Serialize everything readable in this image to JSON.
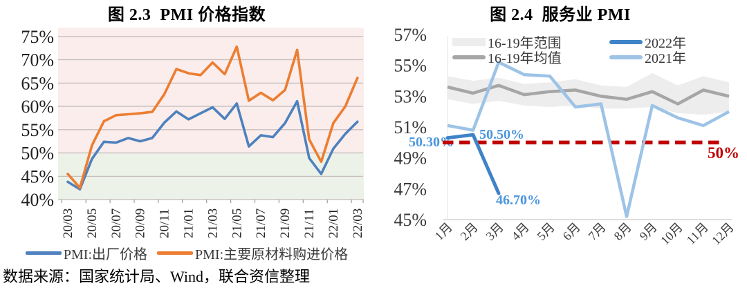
{
  "source_note": "数据来源：国家统计局、Wind，联合资信整理",
  "left_chart": {
    "title": "图 2.3  PMI 价格指数",
    "legend": [
      {
        "label": "PMI:出厂价格",
        "color": "#4E81BD"
      },
      {
        "label": "PMI:主要原材料购进价格",
        "color": "#ED7D31"
      }
    ]
  },
  "right_chart": {
    "title": "图 2.4  服务业 PMI",
    "legend": [
      {
        "label": "16-19年范围",
        "color": "#EDEDED"
      },
      {
        "label": "16-19年均值",
        "color": "#A6A6A6"
      },
      {
        "label": "2022年",
        "color": "#3F83C9"
      },
      {
        "label": "2021年",
        "color": "#9DC3E6"
      }
    ]
  },
  "chart_data": [
    {
      "type": "line",
      "title": "图 2.3 PMI 价格指数",
      "x": [
        "20/03",
        "20/04",
        "20/05",
        "20/06",
        "20/07",
        "20/08",
        "20/09",
        "20/10",
        "20/11",
        "20/12",
        "21/01",
        "21/02",
        "21/03",
        "21/04",
        "21/05",
        "21/06",
        "21/07",
        "21/08",
        "21/09",
        "21/10",
        "21/11",
        "21/12",
        "22/01",
        "22/02",
        "22/03"
      ],
      "x_tick_labels": [
        "20/03",
        "20/05",
        "20/07",
        "20/09",
        "20/11",
        "21/01",
        "21/03",
        "21/05",
        "21/07",
        "21/09",
        "21/11",
        "22/01",
        "22/03"
      ],
      "ylim": [
        40,
        75
      ],
      "yticks": [
        75,
        70,
        65,
        60,
        55,
        50,
        45,
        40
      ],
      "y_unit": "%",
      "grid": true,
      "plot_bg_above_50": "#FAEDEC",
      "plot_bg_below_50": "#EDF2E8",
      "series": [
        {
          "name": "PMI:出厂价格",
          "color": "#4E81BD",
          "values": [
            43.8,
            42.2,
            48.7,
            52.4,
            52.2,
            53.2,
            52.5,
            53.2,
            56.5,
            58.9,
            57.2,
            58.5,
            59.8,
            57.3,
            60.6,
            51.4,
            53.8,
            53.4,
            56.4,
            61.1,
            48.9,
            45.5,
            50.9,
            54.1,
            56.7
          ]
        },
        {
          "name": "PMI:主要原材料购进价格",
          "color": "#ED7D31",
          "values": [
            45.5,
            42.5,
            51.6,
            56.8,
            58.1,
            58.3,
            58.5,
            58.8,
            62.6,
            68.0,
            67.1,
            66.7,
            69.4,
            66.9,
            72.8,
            61.2,
            62.9,
            61.3,
            63.5,
            72.1,
            52.9,
            48.1,
            56.4,
            60.0,
            66.1
          ]
        }
      ],
      "legend_position": "bottom"
    },
    {
      "type": "line",
      "title": "图 2.4 服务业 PMI",
      "categories": [
        "1月",
        "2月",
        "3月",
        "4月",
        "5月",
        "6月",
        "7月",
        "8月",
        "9月",
        "10月",
        "11月",
        "12月"
      ],
      "ylim": [
        45,
        57
      ],
      "yticks": [
        57,
        55,
        53,
        51,
        49,
        47,
        45
      ],
      "y_unit": "%",
      "grid": false,
      "series": [
        {
          "name": "16-19年范围",
          "type": "band",
          "color": "#EDEDED",
          "upper": [
            54.3,
            54.0,
            54.2,
            53.8,
            53.9,
            54.1,
            53.7,
            53.6,
            54.5,
            53.7,
            54.3,
            53.9
          ],
          "lower": [
            52.8,
            52.5,
            52.7,
            52.4,
            52.3,
            52.4,
            52.2,
            52.2,
            52.3,
            51.9,
            51.8,
            52.0
          ]
        },
        {
          "name": "16-19年均值",
          "color": "#A6A6A6",
          "values": [
            53.6,
            53.2,
            53.7,
            53.1,
            53.3,
            53.4,
            53.0,
            52.8,
            53.3,
            52.5,
            53.4,
            53.0
          ]
        },
        {
          "name": "2022年",
          "color": "#3F83C9",
          "values": [
            50.3,
            50.5,
            46.7
          ]
        },
        {
          "name": "2021年",
          "color": "#9DC3E6",
          "values": [
            51.1,
            50.8,
            55.2,
            54.4,
            54.3,
            52.3,
            52.5,
            45.2,
            52.4,
            51.6,
            51.1,
            52.0
          ]
        }
      ],
      "annotations": [
        {
          "text": "50.30%",
          "color": "#4C96DE",
          "refers_to": "2022年 1月"
        },
        {
          "text": "50.50%",
          "color": "#4C96DE",
          "refers_to": "2022年 2月"
        },
        {
          "text": "46.70%",
          "color": "#4C96DE",
          "refers_to": "2022年 3月"
        }
      ],
      "ref_line": {
        "value": 50,
        "label": "50%",
        "color": "#C00000",
        "style": "dashed"
      },
      "legend_position": "top-inside"
    }
  ]
}
